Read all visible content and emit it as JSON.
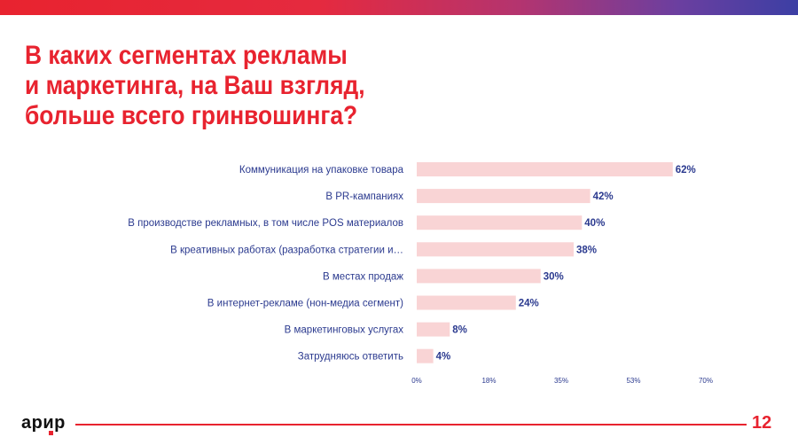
{
  "slide": {
    "title_lines": [
      "В каких сегментах рекламы",
      "и маркетинга, на Ваш взгляд,",
      "больше всего гринвошинга?"
    ],
    "logo_text": "арир",
    "page_number": "12"
  },
  "colors": {
    "brand_red": "#e8232f",
    "bar_fill": "#f9d4d5",
    "label_blue": "#2b3a8f",
    "value_blue": "#2b3a8f"
  },
  "chart_data": {
    "type": "bar",
    "orientation": "horizontal",
    "categories": [
      "Коммуникация на упаковке товара",
      "В PR-кампаниях",
      "В производстве рекламных, в том числе POS материалов",
      "В креативных работах (разработка стратегии и…",
      "В местах продаж",
      "В интернет-рекламе (нон-медиа сегмент)",
      "В маркетинговых услугах",
      "Затрудняюсь ответить"
    ],
    "values": [
      62,
      42,
      40,
      38,
      30,
      24,
      8,
      4
    ],
    "data_labels": [
      "62%",
      "42%",
      "40%",
      "38%",
      "30%",
      "24%",
      "8%",
      "4%"
    ],
    "xlim": [
      0,
      70
    ],
    "x_ticks": [
      "0%",
      "18%",
      "35%",
      "53%",
      "70%"
    ],
    "grid": false
  }
}
